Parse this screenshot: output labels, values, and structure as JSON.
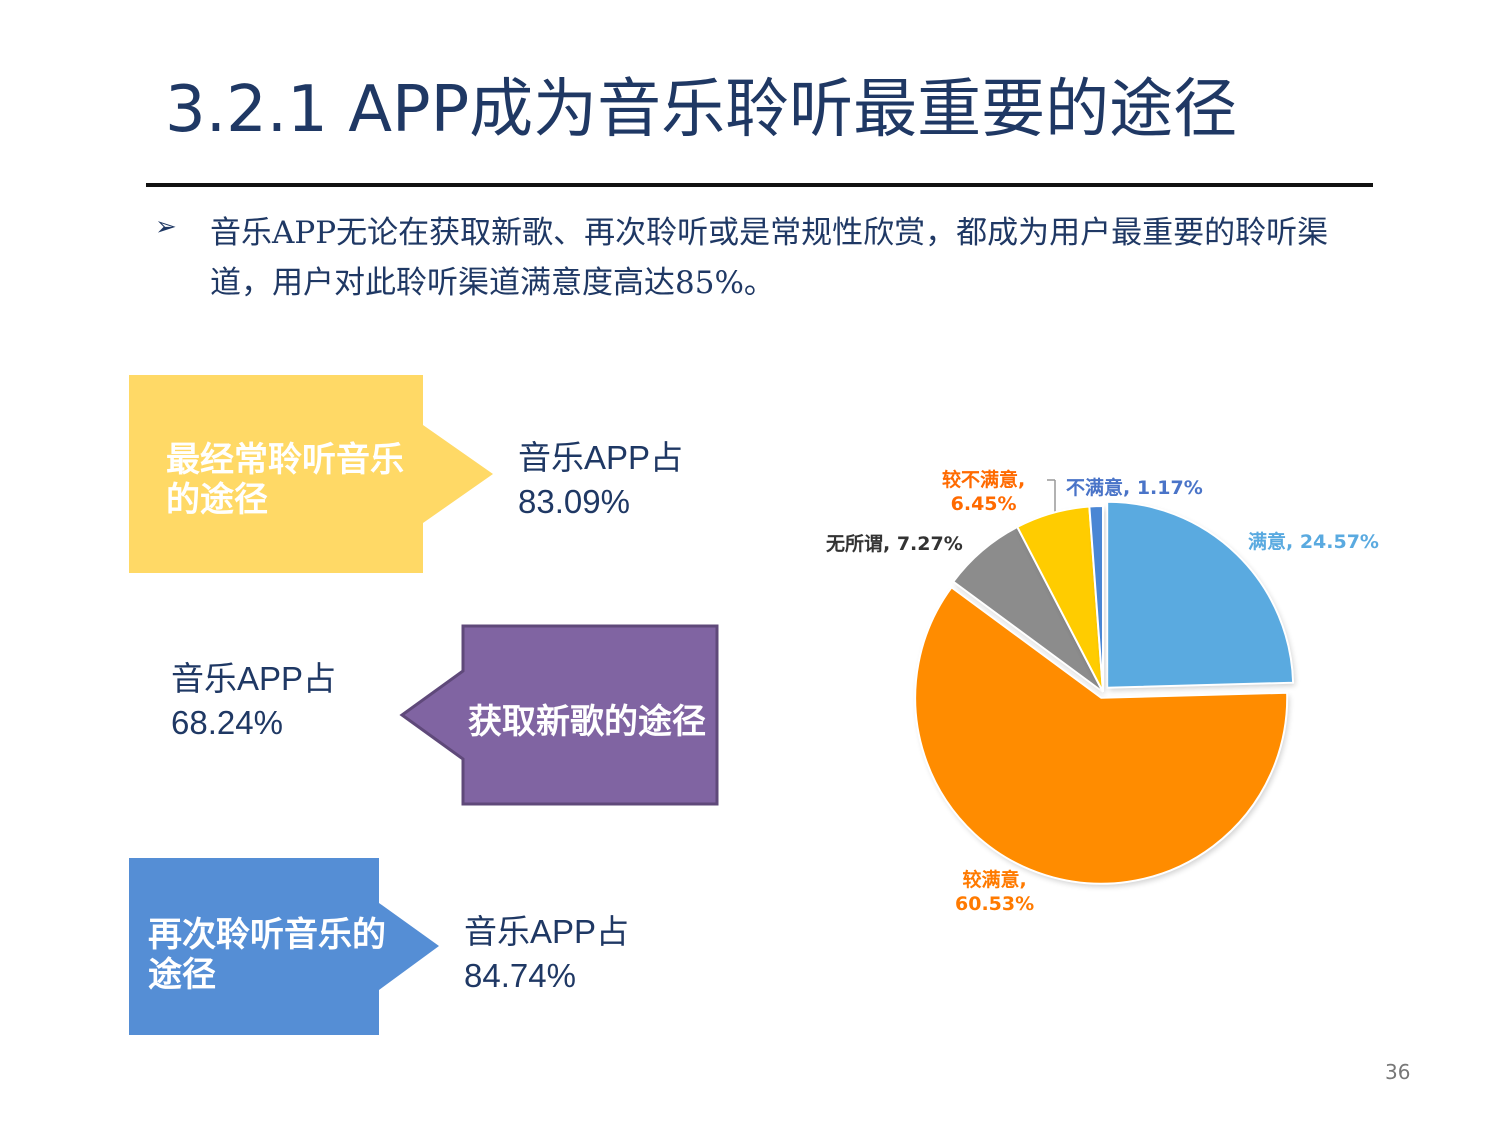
{
  "title": "3.2.1 APP成为音乐聆听最重要的途径",
  "bullet": {
    "icon": "arrowhead-bullet-icon",
    "text": "音乐APP无论在获取新歌、再次聆听或是常规性欣赏，都成为用户最重要的聆听渠道，用户对此聆听渠道满意度高达85%。"
  },
  "callouts": [
    {
      "label": "最经常聆听音乐的途径",
      "stat_line1": "音乐APP占",
      "stat_line2": "83.09%",
      "color": "#FFD966"
    },
    {
      "label": "获取新歌的途径",
      "stat_line1": "音乐APP占",
      "stat_line2": "68.24%",
      "color": "#8064A2"
    },
    {
      "label": "再次聆听音乐的途径",
      "stat_line1": "音乐APP占",
      "stat_line2": "84.74%",
      "color": "#558ED5"
    }
  ],
  "chart_data": {
    "type": "pie",
    "start": "12 o'clock, clockwise",
    "slices": [
      {
        "label": "满意, 24.57%",
        "name": "满意",
        "value": 24.57,
        "color": "#5AAAE0",
        "label_color": "#5AAAE0"
      },
      {
        "label": "较满意, 60.53%",
        "name": "较满意",
        "value": 60.53,
        "color": "#FF8C00",
        "label_color": "#FF7A00"
      },
      {
        "label": "无所谓, 7.27%",
        "name": "无所谓",
        "value": 7.27,
        "color": "#8C8C8C",
        "label_color": "#333333"
      },
      {
        "label": "较不满意, 6.45%",
        "name": "较不满意",
        "value": 6.45,
        "color": "#FFCC00",
        "label_color": "#FF6A00"
      },
      {
        "label": "不满意, 1.17%",
        "name": "不满意",
        "value": 1.17,
        "color": "#4A86D4",
        "label_color": "#4A74C8"
      }
    ]
  },
  "page_number": "36"
}
